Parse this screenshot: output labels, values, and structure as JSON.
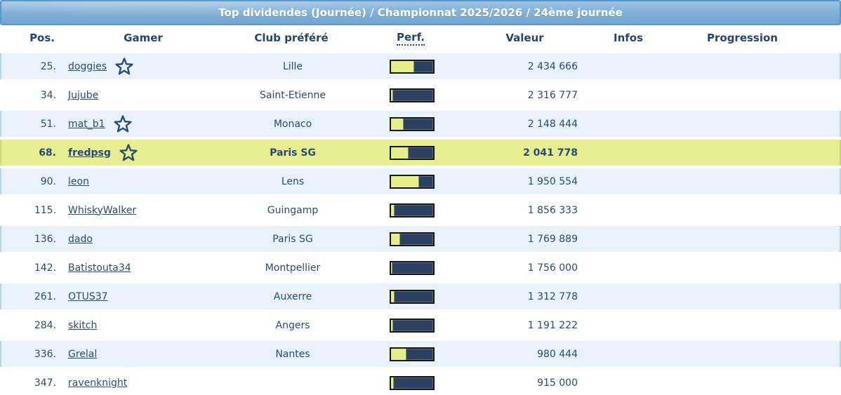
{
  "title": "Top dividendes (Journée) / Championnat 2025/2026 / 24ème journée",
  "columns": {
    "pos": "Pos.",
    "gamer": "Gamer",
    "club": "Club préféré",
    "perf": "Perf.",
    "valeur": "Valeur",
    "infos": "Infos",
    "progression": "Progression"
  },
  "rows": [
    {
      "pos": "25.",
      "gamer": "doggies",
      "star": true,
      "club": "Lille",
      "perf_pct": 55,
      "valeur": "2 434 666",
      "highlight": false
    },
    {
      "pos": "34.",
      "gamer": "Jujube",
      "star": false,
      "club": "Saint-Etienne",
      "perf_pct": 5,
      "valeur": "2 316 777",
      "highlight": false
    },
    {
      "pos": "51.",
      "gamer": "mat_b1",
      "star": true,
      "club": "Monaco",
      "perf_pct": 30,
      "valeur": "2 148 444",
      "highlight": false
    },
    {
      "pos": "68.",
      "gamer": "fredpsg",
      "star": true,
      "club": "Paris SG",
      "perf_pct": 41,
      "valeur": "2 041 778",
      "highlight": true
    },
    {
      "pos": "90.",
      "gamer": "leon",
      "star": false,
      "club": "Lens",
      "perf_pct": 66,
      "valeur": "1 950 554",
      "highlight": false
    },
    {
      "pos": "115.",
      "gamer": "WhiskyWalker",
      "star": false,
      "club": "Guingamp",
      "perf_pct": 8,
      "valeur": "1 856 333",
      "highlight": false
    },
    {
      "pos": "136.",
      "gamer": "dado",
      "star": false,
      "club": "Paris SG",
      "perf_pct": 21,
      "valeur": "1 769 889",
      "highlight": false
    },
    {
      "pos": "142.",
      "gamer": "Batistouta34",
      "star": false,
      "club": "Montpellier",
      "perf_pct": 4,
      "valeur": "1 756 000",
      "highlight": false
    },
    {
      "pos": "261.",
      "gamer": "OTUS37",
      "star": false,
      "club": "Auxerre",
      "perf_pct": 8,
      "valeur": "1 312 778",
      "highlight": false
    },
    {
      "pos": "284.",
      "gamer": "skitch",
      "star": false,
      "club": "Angers",
      "perf_pct": 5,
      "valeur": "1 191 222",
      "highlight": false
    },
    {
      "pos": "336.",
      "gamer": "Grelal",
      "star": false,
      "club": "Nantes",
      "perf_pct": 36,
      "valeur": "980 444",
      "highlight": false
    },
    {
      "pos": "347.",
      "gamer": "ravenknight",
      "star": false,
      "club": "",
      "perf_pct": 7,
      "valeur": "915 000",
      "highlight": false
    }
  ],
  "colors": {
    "title_bar_top": "#9cc2e2",
    "title_bar_bottom": "#72a5d0",
    "title_bar_border": "#5b99c9",
    "title_text": "#ffffff",
    "header_text": "#24456e",
    "body_text": "#2b4a73",
    "link_text": "#2b4a73",
    "row_alt_bg": "#e9f1fb",
    "row_highlight_bg": "#e6ee8f",
    "row_border": "#bcd2e2",
    "bar_bg": "#2b4063",
    "bar_fill": "#e5ef89",
    "bar_border": "#161616"
  }
}
